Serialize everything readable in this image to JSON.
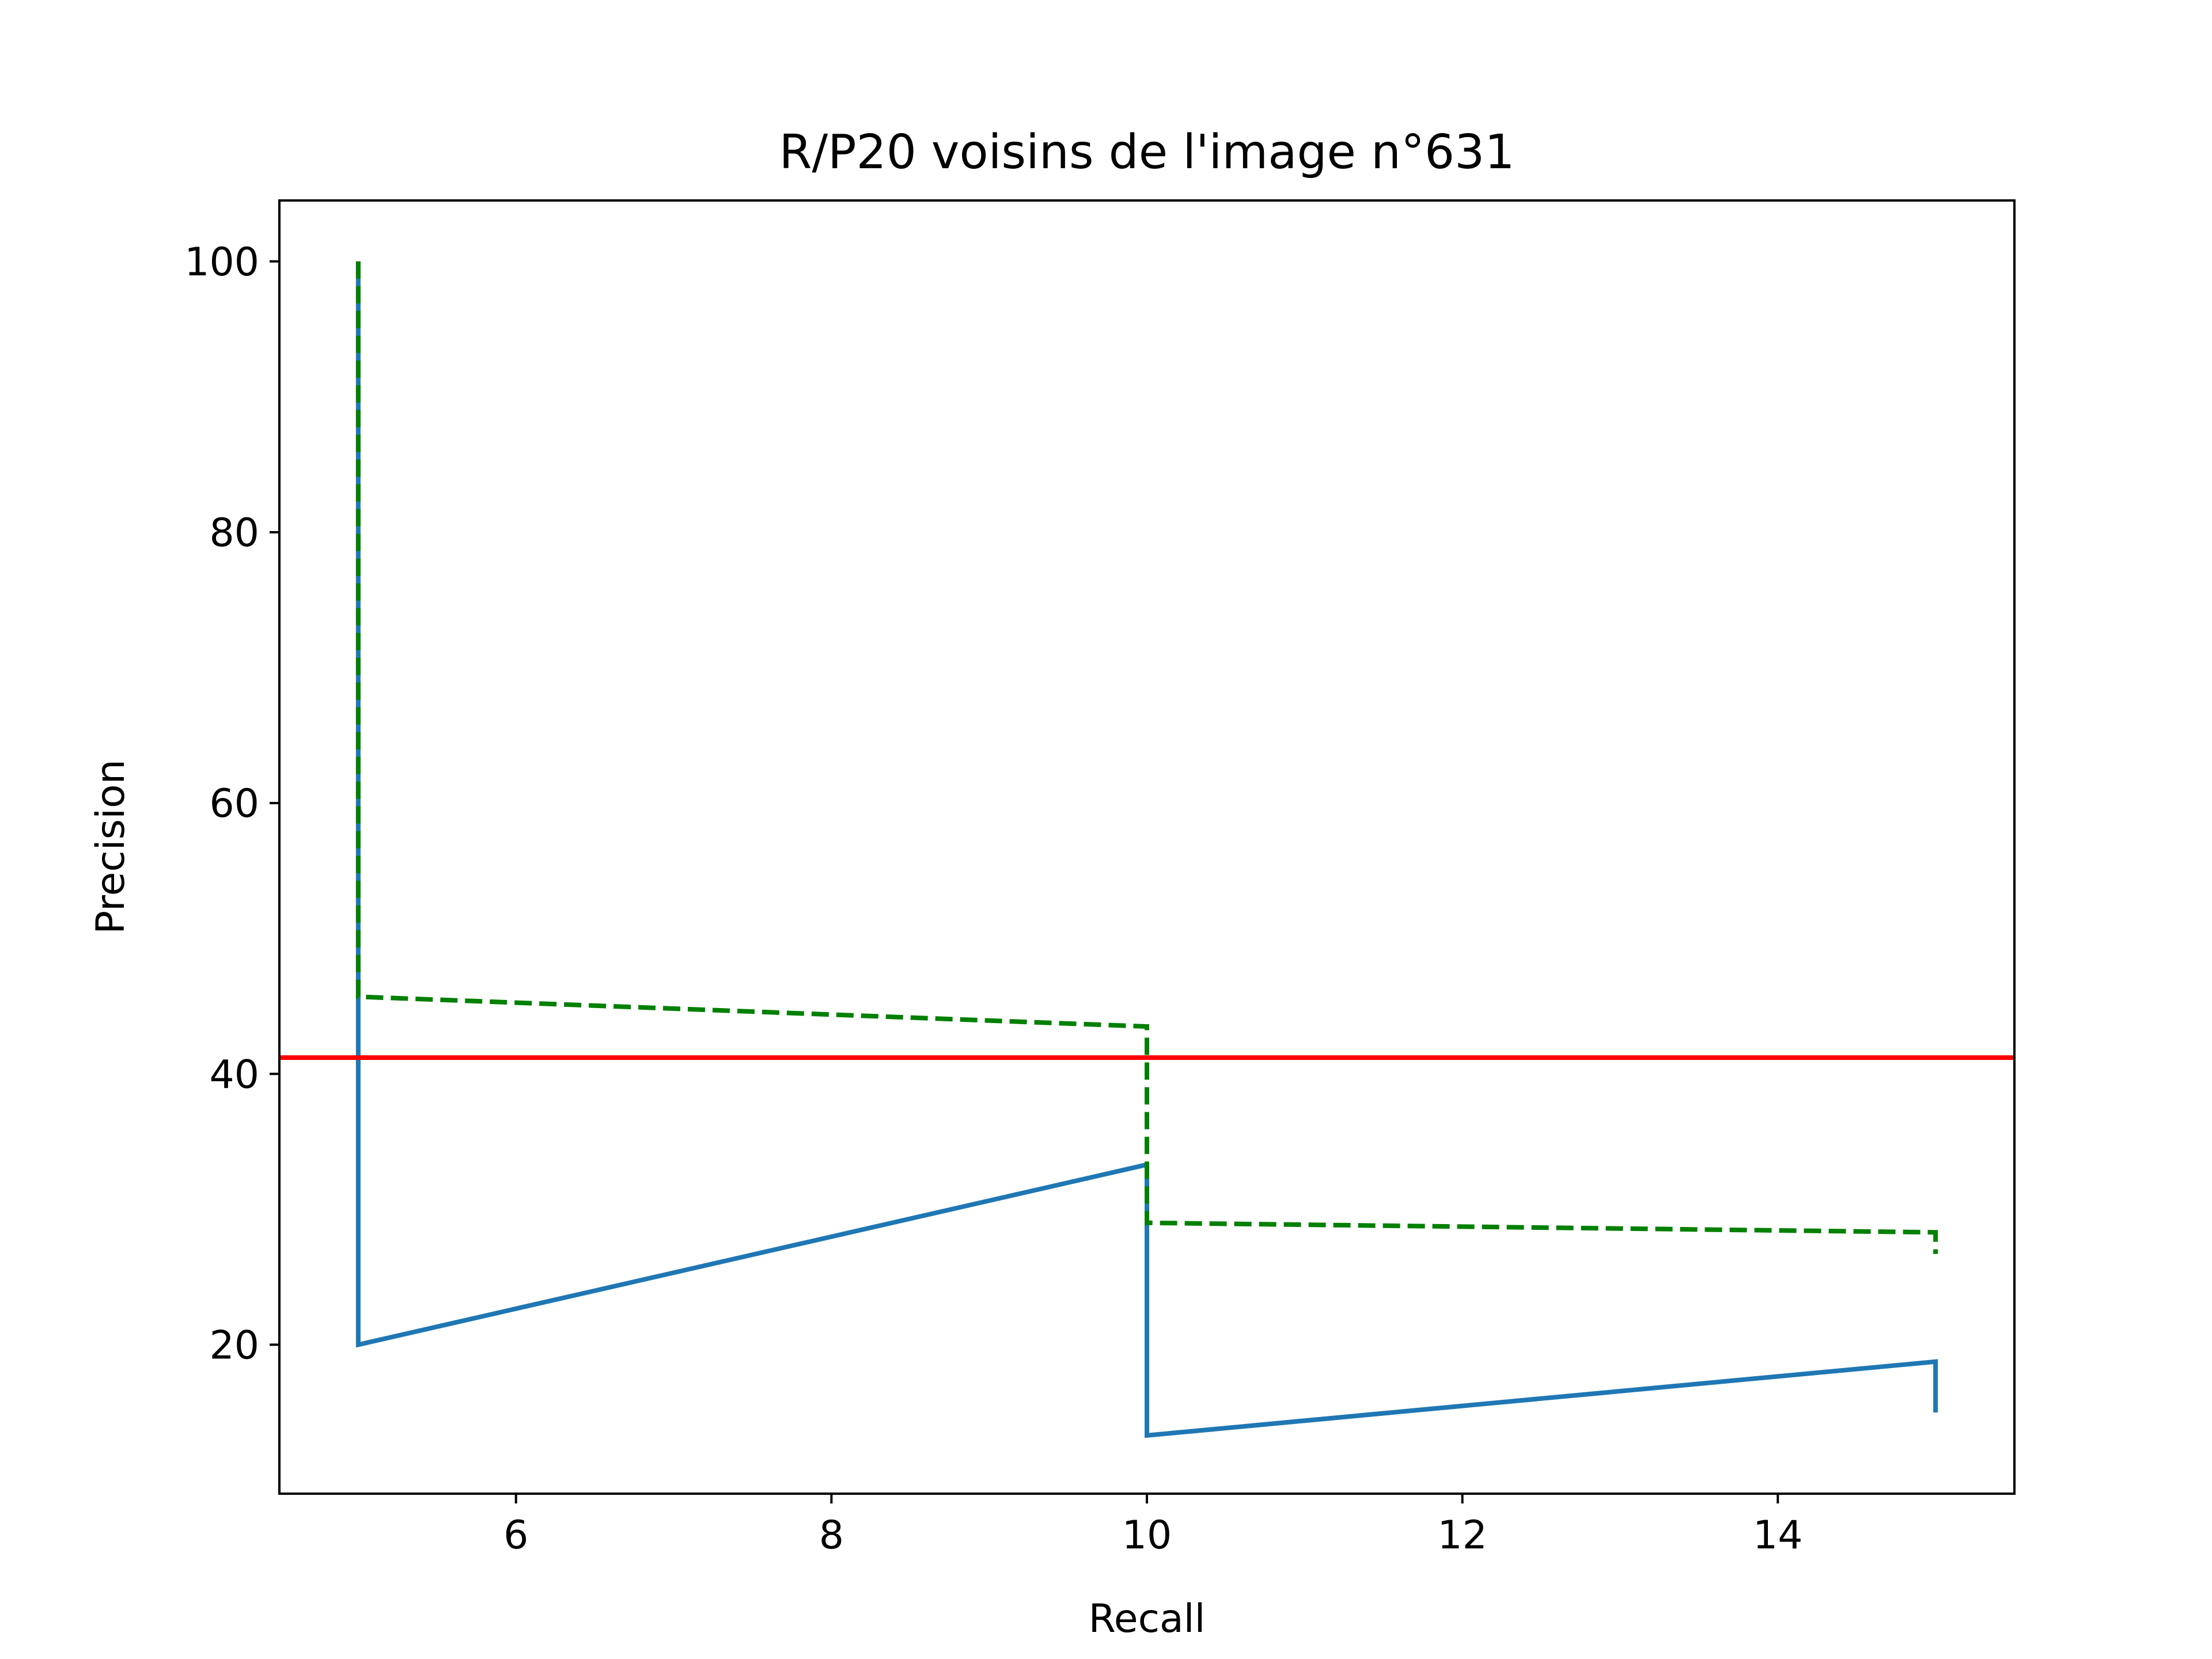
{
  "chart_data": {
    "type": "line",
    "title": "R/P20 voisins de l'image n°631",
    "xlabel": "Recall",
    "ylabel": "Precision",
    "xlim": [
      4.5,
      15.5
    ],
    "ylim": [
      9,
      104.5
    ],
    "xticks": [
      6,
      8,
      10,
      12,
      14
    ],
    "yticks": [
      20,
      40,
      60,
      80,
      100
    ],
    "grid": false,
    "series": [
      {
        "color": "#1f77b4",
        "style": "solid",
        "x": [
          5,
          5,
          5,
          10,
          10,
          10,
          15,
          15
        ],
        "y": [
          100,
          50,
          20,
          33.3,
          28.6,
          13.3,
          18.75,
          15
        ]
      },
      {
        "color": "#008000",
        "style": "dashed",
        "x": [
          5,
          5,
          10,
          10,
          15,
          15
        ],
        "y": [
          100,
          45.7,
          43.5,
          29.0,
          28.3,
          26.7
        ]
      },
      {
        "color": "#ff0000",
        "style": "solid",
        "type": "hline",
        "y": 41.2
      }
    ]
  }
}
